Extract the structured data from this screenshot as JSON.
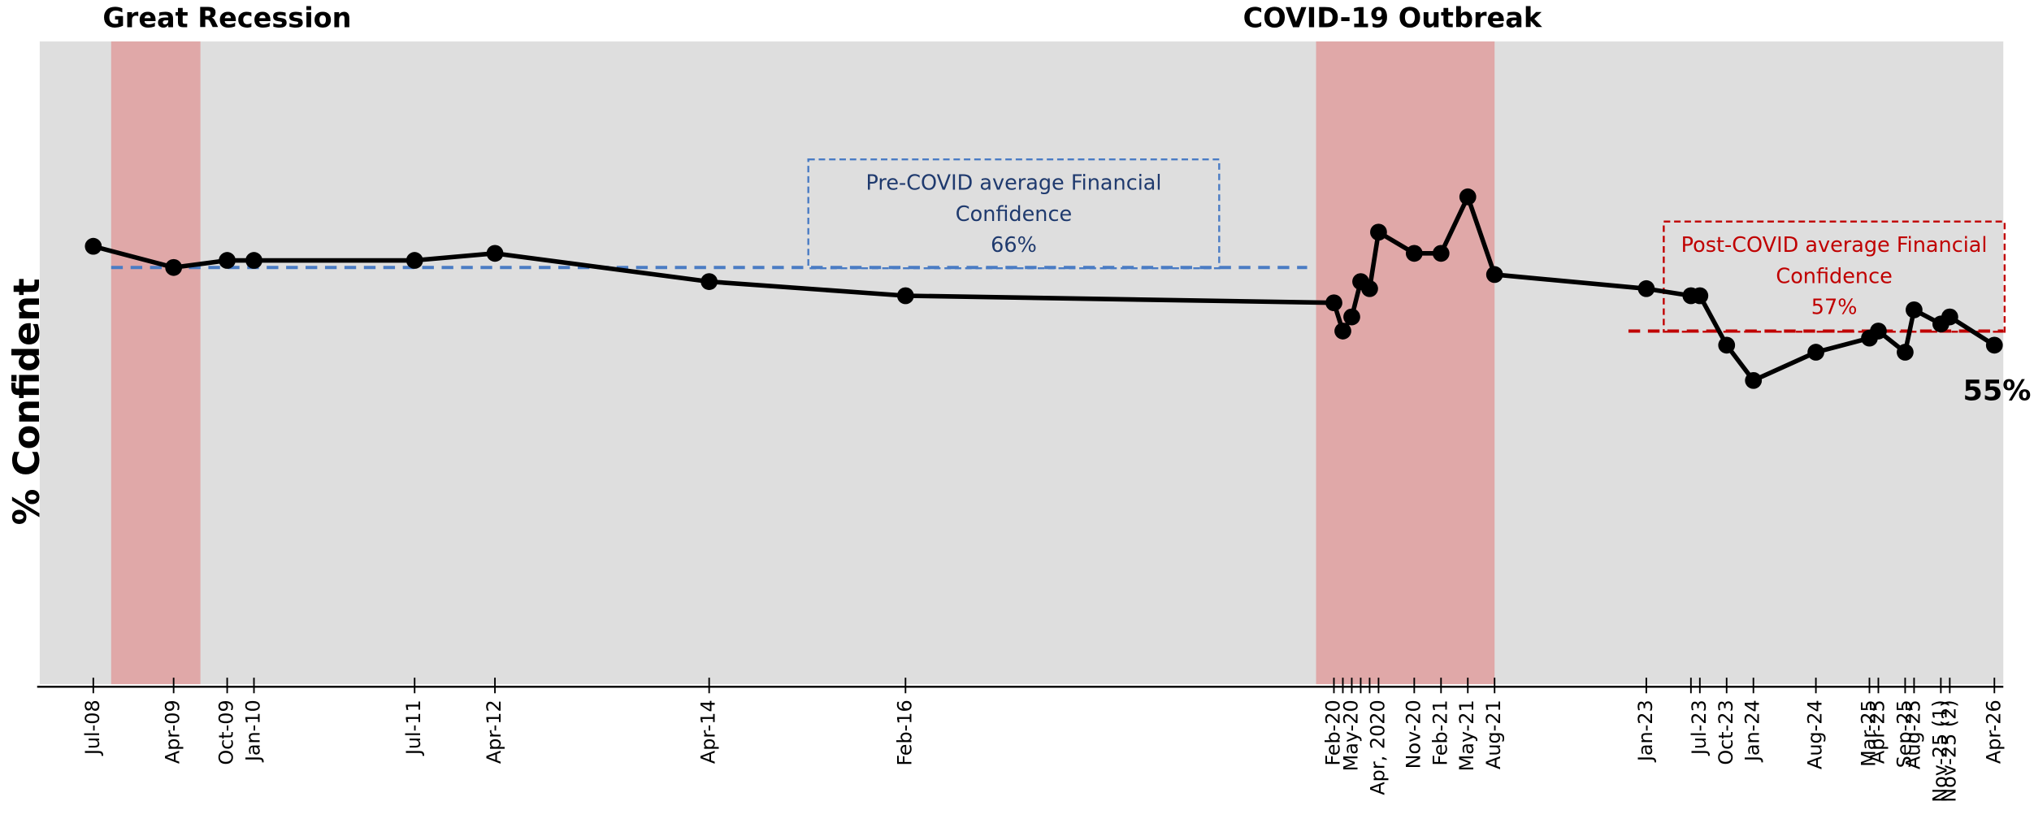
{
  "chart_data": {
    "type": "line",
    "y_label": "% Confident",
    "categories": [
      "Jul-08",
      "Apr-09",
      "Oct-09",
      "Jan-10",
      "Jul-11",
      "Apr-12",
      "Apr-14",
      "Feb-16",
      "Feb-20",
      null,
      "May-20",
      null,
      null,
      "Apr, 2020",
      "Nov-20",
      "Feb-21",
      "May-21",
      "Aug-21",
      "Jan-23",
      null,
      "Jul-23",
      "Oct-23",
      "Jan-24",
      "Aug-24",
      "Mar-25",
      "Apr-25",
      "Sep-25",
      "Aug-25",
      "Nov-25 (1)",
      "Nov-25 (2)",
      "Apr-26"
    ],
    "x": [
      "2008-07",
      "2009-04",
      "2009-10",
      "2010-01",
      "2011-07",
      "2012-04",
      "2014-04",
      "2016-02",
      "2020-02",
      "2020-03",
      "2020-04",
      "2020-05",
      "2020-06",
      "2020-07",
      "2020-11",
      "2021-02",
      "2021-05",
      "2021-08",
      "2023-01",
      "2023-06",
      "2023-07",
      "2023-10",
      "2024-01",
      "2024-08",
      "2025-02",
      "2025-03",
      "2025-06",
      "2025-07",
      "2025-10",
      "2025-11",
      "2026-04"
    ],
    "series": [
      {
        "color": "#000000",
        "values": [
          69,
          66,
          67,
          67,
          67,
          68,
          64,
          62,
          61,
          57,
          59,
          64,
          63,
          71,
          68,
          68,
          76,
          65,
          63,
          62,
          62,
          55,
          50,
          54,
          56,
          57,
          54,
          60,
          58,
          59,
          55
        ],
        "value_labels": [
          null,
          null,
          null,
          null,
          null,
          null,
          null,
          null,
          null,
          null,
          null,
          null,
          null,
          null,
          null,
          null,
          null,
          null,
          null,
          null,
          null,
          null,
          null,
          null,
          null,
          null,
          null,
          null,
          null,
          null,
          "55%"
        ]
      }
    ],
    "xlim": [
      "2008-01",
      "2026-05"
    ],
    "ylim": [
      7,
      98
    ],
    "shaded_regions": [
      {
        "label": "Great Recession",
        "start": "2008-09",
        "end": "2009-07",
        "color": "#e0a8a8"
      },
      {
        "label": "COVID-19 Outbreak",
        "start": "2019-12",
        "end": "2021-08",
        "color": "#e0a8a8"
      }
    ],
    "reference_lines": [
      {
        "text": [
          "Pre-COVID average Financial",
          "Confidence",
          "66%"
        ],
        "value": 66,
        "start": "2008-09",
        "end": "2019-11",
        "color": "#4a7cc4",
        "text_color": "#1f3a6e"
      },
      {
        "text": [
          "Post-COVID average Financial",
          "Confidence",
          "57%"
        ],
        "value": 57,
        "start": "2022-11",
        "end": "2026-05",
        "color": "#c00000",
        "text_color": "#c00000"
      }
    ],
    "background": "#dedede"
  }
}
